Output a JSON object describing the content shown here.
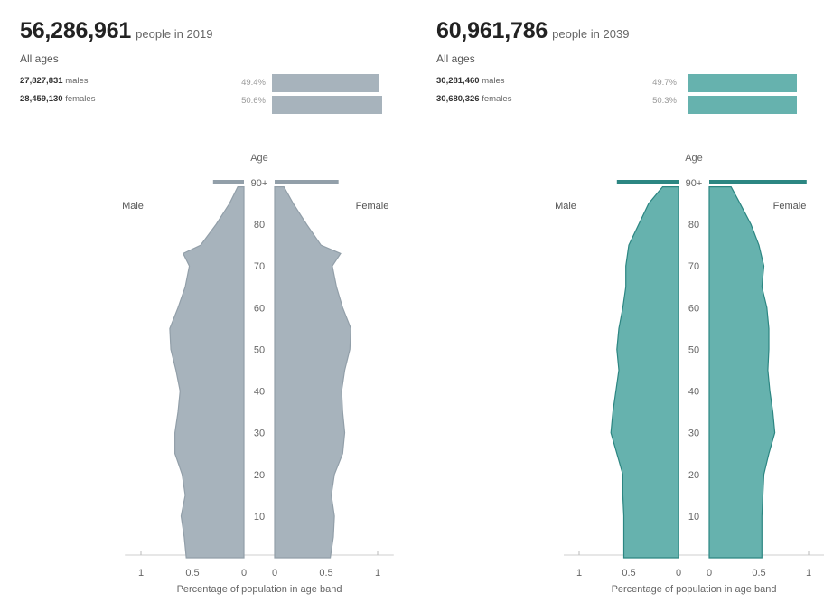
{
  "panels": [
    {
      "count": "56,286,961",
      "people_text": "people in 2019",
      "all_ages": "All ages",
      "males_count": "27,827,831",
      "males_word": "males",
      "females_count": "28,459,130",
      "females_word": "females",
      "male_pct": "49.4%",
      "female_pct": "50.6%",
      "male_label": "Male",
      "female_label": "Female",
      "color": "#a7b3bc",
      "stroke": "#929fa9"
    },
    {
      "count": "60,961,786",
      "people_text": "people in 2039",
      "all_ages": "All ages",
      "males_count": "30,281,460",
      "males_word": "males",
      "females_count": "30,680,326",
      "females_word": "females",
      "male_pct": "49.7%",
      "female_pct": "50.3%",
      "male_label": "Male",
      "female_label": "Female",
      "color": "#66b2ae",
      "stroke": "#2c8682"
    }
  ],
  "chart_data": [
    {
      "type": "bar",
      "title": "56,286,961 people in 2019",
      "orientation": "horizontal-population-pyramid",
      "xlabel": "Percentage of population in age band",
      "ylabel": "Age",
      "x_ticks": [
        "1",
        "0.5",
        "0",
        "0",
        "0.5",
        "1"
      ],
      "y_ticks": [
        "90+",
        "80",
        "70",
        "60",
        "50",
        "40",
        "30",
        "20",
        "10"
      ],
      "xlim": [
        -1.2,
        1.2
      ],
      "ages": [
        0,
        5,
        10,
        15,
        20,
        25,
        30,
        35,
        40,
        45,
        50,
        55,
        60,
        65,
        70,
        73,
        75,
        80,
        85,
        89,
        90
      ],
      "series": [
        {
          "name": "Male",
          "values": [
            0.56,
            0.58,
            0.61,
            0.57,
            0.6,
            0.67,
            0.67,
            0.64,
            0.62,
            0.66,
            0.71,
            0.72,
            0.64,
            0.57,
            0.53,
            0.59,
            0.42,
            0.27,
            0.14,
            0.06,
            0.3
          ]
        },
        {
          "name": "Female",
          "values": [
            0.54,
            0.57,
            0.58,
            0.55,
            0.58,
            0.66,
            0.68,
            0.66,
            0.65,
            0.68,
            0.73,
            0.74,
            0.66,
            0.6,
            0.56,
            0.64,
            0.45,
            0.31,
            0.18,
            0.09,
            0.62
          ]
        }
      ]
    },
    {
      "type": "bar",
      "title": "60,961,786 people in 2039",
      "orientation": "horizontal-population-pyramid",
      "xlabel": "Percentage of population in age band",
      "ylabel": "Age",
      "x_ticks": [
        "1",
        "0.5",
        "0",
        "0",
        "0.5",
        "1"
      ],
      "y_ticks": [
        "90+",
        "80",
        "70",
        "60",
        "50",
        "40",
        "30",
        "20",
        "10"
      ],
      "xlim": [
        -1.2,
        1.2
      ],
      "ages": [
        0,
        5,
        10,
        15,
        20,
        25,
        30,
        35,
        40,
        45,
        50,
        55,
        60,
        65,
        70,
        75,
        80,
        85,
        89,
        90
      ],
      "series": [
        {
          "name": "Male",
          "values": [
            0.55,
            0.55,
            0.55,
            0.56,
            0.56,
            0.62,
            0.68,
            0.66,
            0.63,
            0.6,
            0.62,
            0.6,
            0.56,
            0.53,
            0.53,
            0.5,
            0.4,
            0.3,
            0.16,
            0.62
          ]
        },
        {
          "name": "Female",
          "values": [
            0.53,
            0.53,
            0.53,
            0.54,
            0.55,
            0.6,
            0.66,
            0.64,
            0.61,
            0.59,
            0.6,
            0.6,
            0.58,
            0.53,
            0.55,
            0.5,
            0.42,
            0.31,
            0.22,
            0.98
          ]
        }
      ]
    }
  ]
}
